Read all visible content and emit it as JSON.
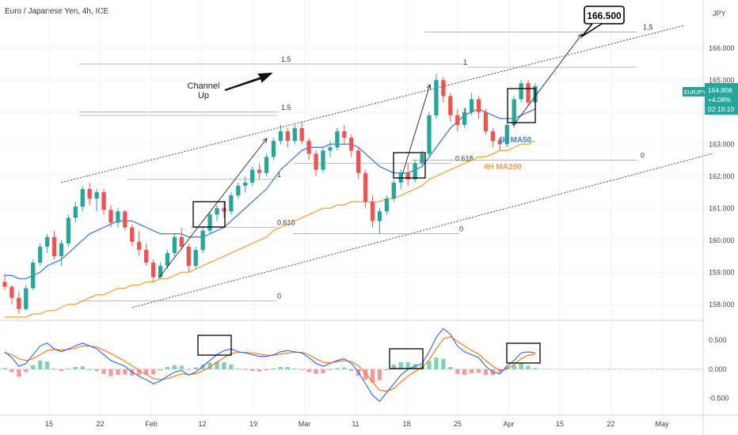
{
  "header": {
    "title": "Euro / Japanese Yen, 4h, ICE",
    "currency": "JPY"
  },
  "colors": {
    "bull": "#26a69a",
    "bear": "#ef5350",
    "ma50": "#3f7fd6",
    "ma200": "#f2a23a",
    "macd_line": "#2962ff",
    "signal_line": "#ff6d00",
    "badge": "#26a69a"
  },
  "price_badge": {
    "symbol": "EURJPY",
    "price": "164.808",
    "change": "+4.08%",
    "countdown": "02:19:10"
  },
  "annotations": {
    "target": "166.500",
    "channel": [
      "Channel",
      "Up"
    ],
    "ma50": "4H MA50",
    "ma200": "4H MA200"
  },
  "chart_data": {
    "type": "candlestick",
    "title": "Euro / Japanese Yen, 4h, ICE",
    "y_axis": {
      "label": "JPY",
      "range": [
        157.5,
        167.5
      ],
      "ticks": [
        "166.000",
        "165.000",
        "164.000",
        "163.000",
        "162.000",
        "161.000",
        "160.000",
        "159.000",
        "158.000"
      ]
    },
    "x_axis": {
      "ticks": [
        "15",
        "22",
        "Feb",
        "12",
        "19",
        "Mar",
        "11",
        "18",
        "25",
        "Apr",
        "15",
        "22",
        "May"
      ]
    },
    "key_levels": [
      {
        "label": "1.5",
        "value": 166.5
      },
      {
        "label": "1",
        "value": 165.4
      },
      {
        "label": "1.5",
        "value": 165.5
      },
      {
        "label": "1.5",
        "value": 164.0
      },
      {
        "label": "1",
        "value": 163.9
      },
      {
        "label": "0.618",
        "value": 162.4
      },
      {
        "label": "1",
        "value": 161.9
      },
      {
        "label": "0.618",
        "value": 160.4
      },
      {
        "label": "0",
        "value": 162.5
      },
      {
        "label": "0",
        "value": 160.2
      },
      {
        "label": "0",
        "value": 158.1
      }
    ],
    "channel_lines": [
      {
        "name": "upper",
        "from": [
          8,
          161.8
        ],
        "to": [
          96,
          166.7
        ]
      },
      {
        "name": "lower",
        "from": [
          18,
          157.9
        ],
        "to": [
          100,
          162.7
        ]
      }
    ],
    "target": 166.5,
    "last_price": 164.808,
    "candles": [
      [
        158.7,
        158.95,
        158.45,
        158.55
      ],
      [
        158.55,
        158.6,
        158.0,
        158.2
      ],
      [
        158.2,
        158.4,
        157.7,
        157.85
      ],
      [
        157.85,
        158.6,
        157.8,
        158.5
      ],
      [
        158.5,
        159.4,
        158.45,
        159.3
      ],
      [
        159.3,
        159.9,
        159.2,
        159.8
      ],
      [
        159.8,
        160.2,
        159.6,
        160.1
      ],
      [
        160.1,
        160.3,
        159.4,
        159.5
      ],
      [
        159.5,
        160.0,
        159.2,
        159.9
      ],
      [
        159.9,
        160.8,
        159.8,
        160.7
      ],
      [
        160.7,
        161.2,
        160.55,
        161.05
      ],
      [
        161.05,
        161.7,
        160.9,
        161.6
      ],
      [
        161.6,
        161.8,
        161.1,
        161.3
      ],
      [
        161.3,
        161.6,
        160.9,
        161.5
      ],
      [
        161.5,
        161.6,
        160.8,
        160.95
      ],
      [
        160.95,
        161.1,
        160.4,
        160.55
      ],
      [
        160.55,
        161.0,
        160.4,
        160.9
      ],
      [
        160.9,
        160.95,
        160.3,
        160.4
      ],
      [
        160.4,
        160.5,
        159.8,
        159.95
      ],
      [
        159.95,
        160.3,
        159.5,
        159.7
      ],
      [
        159.7,
        159.9,
        159.2,
        159.3
      ],
      [
        159.3,
        159.4,
        158.7,
        158.85
      ],
      [
        158.85,
        159.3,
        158.8,
        159.2
      ],
      [
        159.2,
        159.7,
        159.1,
        159.6
      ],
      [
        159.6,
        160.2,
        159.5,
        160.1
      ],
      [
        160.1,
        160.4,
        159.7,
        159.8
      ],
      [
        159.8,
        159.9,
        159.0,
        159.2
      ],
      [
        159.2,
        159.8,
        159.1,
        159.7
      ],
      [
        159.7,
        160.4,
        159.6,
        160.3
      ],
      [
        160.3,
        160.9,
        160.2,
        160.8
      ],
      [
        160.8,
        161.1,
        160.6,
        161.0
      ],
      [
        161.0,
        161.2,
        160.7,
        160.9
      ],
      [
        160.9,
        161.5,
        160.8,
        161.4
      ],
      [
        161.4,
        161.8,
        161.3,
        161.7
      ],
      [
        161.7,
        162.0,
        161.5,
        161.8
      ],
      [
        161.8,
        162.3,
        161.7,
        162.2
      ],
      [
        162.2,
        162.4,
        161.9,
        162.1
      ],
      [
        162.1,
        162.7,
        162.0,
        162.6
      ],
      [
        162.6,
        163.2,
        162.5,
        163.1
      ],
      [
        163.1,
        163.6,
        163.0,
        163.4
      ],
      [
        163.4,
        163.5,
        162.9,
        163.1
      ],
      [
        163.1,
        163.6,
        163.0,
        163.5
      ],
      [
        163.5,
        163.7,
        163.0,
        163.1
      ],
      [
        163.1,
        163.2,
        162.5,
        162.7
      ],
      [
        162.7,
        162.8,
        162.0,
        162.2
      ],
      [
        162.2,
        162.9,
        162.1,
        162.8
      ],
      [
        162.8,
        163.1,
        162.6,
        162.9
      ],
      [
        162.9,
        163.5,
        162.8,
        163.4
      ],
      [
        163.4,
        163.6,
        163.0,
        163.2
      ],
      [
        163.2,
        163.3,
        162.6,
        162.8
      ],
      [
        162.8,
        162.9,
        161.9,
        162.1
      ],
      [
        162.1,
        162.2,
        161.0,
        161.2
      ],
      [
        161.2,
        161.4,
        160.4,
        160.6
      ],
      [
        160.6,
        161.0,
        160.2,
        160.9
      ],
      [
        160.9,
        161.4,
        160.8,
        161.3
      ],
      [
        161.3,
        161.9,
        161.2,
        161.8
      ],
      [
        161.8,
        162.2,
        161.6,
        162.1
      ],
      [
        162.1,
        162.4,
        161.7,
        161.9
      ],
      [
        161.9,
        162.5,
        161.8,
        162.4
      ],
      [
        162.4,
        162.8,
        162.3,
        162.7
      ],
      [
        162.7,
        164.0,
        162.6,
        163.9
      ],
      [
        163.9,
        165.2,
        163.8,
        165.0
      ],
      [
        165.0,
        165.1,
        164.3,
        164.5
      ],
      [
        164.5,
        164.6,
        163.7,
        163.9
      ],
      [
        163.9,
        164.1,
        163.4,
        163.6
      ],
      [
        163.6,
        164.1,
        163.5,
        164.0
      ],
      [
        164.0,
        164.6,
        163.9,
        164.4
      ],
      [
        164.4,
        164.5,
        163.8,
        164.0
      ],
      [
        164.0,
        164.1,
        163.3,
        163.4
      ],
      [
        163.4,
        163.5,
        162.9,
        163.1
      ],
      [
        163.1,
        163.2,
        162.8,
        163.0
      ],
      [
        163.0,
        163.7,
        162.9,
        163.6
      ],
      [
        163.6,
        164.5,
        163.5,
        164.4
      ],
      [
        164.4,
        165.0,
        164.3,
        164.9
      ],
      [
        164.9,
        165.0,
        164.2,
        164.3
      ],
      [
        164.3,
        164.9,
        164.2,
        164.81
      ]
    ],
    "ma50": [
      158.9,
      158.9,
      158.8,
      158.8,
      158.9,
      159.0,
      159.2,
      159.3,
      159.4,
      159.6,
      159.8,
      160.0,
      160.2,
      160.3,
      160.4,
      160.5,
      160.6,
      160.6,
      160.6,
      160.5,
      160.4,
      160.3,
      160.2,
      160.2,
      160.2,
      160.2,
      160.1,
      160.1,
      160.1,
      160.2,
      160.3,
      160.4,
      160.6,
      160.8,
      161.0,
      161.2,
      161.4,
      161.6,
      161.9,
      162.2,
      162.4,
      162.6,
      162.8,
      162.9,
      162.9,
      162.9,
      163.0,
      163.0,
      163.0,
      163.0,
      162.9,
      162.7,
      162.5,
      162.3,
      162.2,
      162.1,
      162.1,
      162.1,
      162.2,
      162.3,
      162.6,
      162.9,
      163.2,
      163.5,
      163.7,
      163.9,
      164.0,
      164.1,
      164.0,
      163.9,
      163.8,
      163.8,
      163.8,
      163.9,
      164.0,
      164.1
    ],
    "ma200": [
      157.6,
      157.6,
      157.6,
      157.6,
      157.7,
      157.7,
      157.8,
      157.8,
      157.9,
      158.0,
      158.0,
      158.1,
      158.2,
      158.3,
      158.3,
      158.4,
      158.5,
      158.5,
      158.6,
      158.6,
      158.7,
      158.7,
      158.8,
      158.8,
      158.9,
      159.0,
      159.0,
      159.1,
      159.2,
      159.3,
      159.4,
      159.5,
      159.6,
      159.7,
      159.8,
      159.9,
      160.0,
      160.1,
      160.3,
      160.4,
      160.5,
      160.6,
      160.7,
      160.8,
      160.9,
      161.0,
      161.0,
      161.1,
      161.1,
      161.2,
      161.2,
      161.2,
      161.2,
      161.2,
      161.3,
      161.3,
      161.4,
      161.5,
      161.6,
      161.7,
      161.9,
      162.0,
      162.1,
      162.2,
      162.3,
      162.4,
      162.5,
      162.6,
      162.6,
      162.7,
      162.8,
      162.8,
      162.9,
      163.0,
      163.0,
      163.1
    ],
    "macd": {
      "y_ticks": [
        "0.500",
        "0.000",
        "-0.500"
      ],
      "range": [
        -0.75,
        0.8
      ],
      "macd": [
        0.3,
        0.2,
        0.05,
        0.1,
        0.25,
        0.4,
        0.45,
        0.35,
        0.3,
        0.35,
        0.4,
        0.45,
        0.4,
        0.35,
        0.25,
        0.15,
        0.1,
        0.05,
        -0.05,
        -0.12,
        -0.18,
        -0.25,
        -0.2,
        -0.12,
        -0.05,
        -0.02,
        -0.1,
        -0.05,
        0.05,
        0.15,
        0.25,
        0.32,
        0.35,
        0.3,
        0.28,
        0.25,
        0.22,
        0.22,
        0.25,
        0.3,
        0.32,
        0.3,
        0.28,
        0.2,
        0.1,
        0.05,
        0.1,
        0.15,
        0.18,
        0.1,
        -0.05,
        -0.25,
        -0.45,
        -0.55,
        -0.4,
        -0.25,
        -0.1,
        0.0,
        0.05,
        0.1,
        0.3,
        0.55,
        0.7,
        0.6,
        0.4,
        0.3,
        0.25,
        0.2,
        0.05,
        -0.05,
        -0.08,
        0.05,
        0.15,
        0.28,
        0.3,
        0.28
      ],
      "signal": [
        0.28,
        0.25,
        0.18,
        0.15,
        0.18,
        0.25,
        0.32,
        0.34,
        0.33,
        0.34,
        0.36,
        0.4,
        0.4,
        0.38,
        0.33,
        0.27,
        0.2,
        0.14,
        0.06,
        -0.02,
        -0.09,
        -0.16,
        -0.18,
        -0.16,
        -0.12,
        -0.08,
        -0.09,
        -0.08,
        -0.03,
        0.04,
        0.12,
        0.2,
        0.27,
        0.29,
        0.29,
        0.28,
        0.26,
        0.24,
        0.24,
        0.26,
        0.28,
        0.29,
        0.29,
        0.25,
        0.18,
        0.12,
        0.11,
        0.13,
        0.15,
        0.13,
        0.06,
        -0.07,
        -0.22,
        -0.36,
        -0.38,
        -0.33,
        -0.22,
        -0.12,
        -0.04,
        0.03,
        0.16,
        0.35,
        0.52,
        0.56,
        0.48,
        0.4,
        0.32,
        0.26,
        0.15,
        0.05,
        -0.02,
        0.0,
        0.08,
        0.18,
        0.24,
        0.26
      ]
    }
  }
}
